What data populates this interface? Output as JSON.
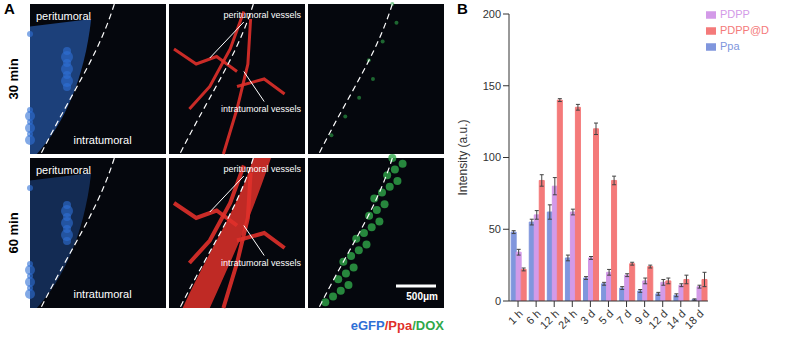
{
  "panel_a": {
    "label": "A",
    "rows": [
      {
        "label": "30 min",
        "cells": [
          {
            "channel": "eGFP",
            "texts": [
              "peritumoral",
              "intratumoral"
            ]
          },
          {
            "channel": "Ppa",
            "texts": [
              "peritumoral vessels",
              "intratumoral vessels"
            ]
          },
          {
            "channel": "DOX",
            "texts": []
          }
        ]
      },
      {
        "label": "60 min",
        "cells": [
          {
            "channel": "eGFP",
            "texts": [
              "peritumoral",
              "intratumoral"
            ]
          },
          {
            "channel": "Ppa",
            "texts": [
              "peritumoral vessels",
              "intratumoral vessels"
            ]
          },
          {
            "channel": "DOX",
            "texts": []
          }
        ]
      }
    ],
    "scale_bar": "500μm",
    "channels": [
      {
        "name": "eGFP",
        "color": "#2f6fd6"
      },
      {
        "name": "Ppa",
        "color": "#e0302a"
      },
      {
        "name": "DOX",
        "color": "#2fa84a"
      }
    ],
    "channel_separator": "/"
  },
  "panel_b": {
    "label": "B"
  },
  "chart_data": {
    "type": "bar",
    "y_label": "Intensity (a.u.)",
    "categories": [
      "1 h",
      "6 h",
      "12 h",
      "24 h",
      "3 d",
      "5 d",
      "7 d",
      "9 d",
      "12 d",
      "14 d",
      "18 d"
    ],
    "ylim": [
      0,
      200
    ],
    "yticks": [
      0,
      50,
      100,
      150,
      200
    ],
    "legend": "upper right",
    "series": [
      {
        "name": "Ppa",
        "color": "#8096dd",
        "values": [
          48,
          55,
          62,
          30,
          16,
          12,
          9,
          7,
          5,
          4,
          1
        ],
        "errors": [
          1,
          2,
          5,
          2,
          1,
          1,
          1,
          1,
          1,
          1,
          0.5
        ]
      },
      {
        "name": "PDPP",
        "color": "#d39ae8",
        "values": [
          34,
          60,
          80,
          62,
          30,
          20,
          18,
          14,
          13,
          11,
          10
        ],
        "errors": [
          2,
          3,
          6,
          2,
          1,
          2,
          1,
          2,
          2,
          1,
          1
        ]
      },
      {
        "name": "PDPP@D",
        "color": "#f47a7a",
        "values": [
          22,
          84,
          140,
          135,
          120,
          84,
          26,
          24,
          14,
          15,
          15
        ],
        "errors": [
          1,
          4,
          1,
          2,
          4,
          3,
          1,
          1,
          2,
          3,
          5
        ]
      }
    ]
  }
}
